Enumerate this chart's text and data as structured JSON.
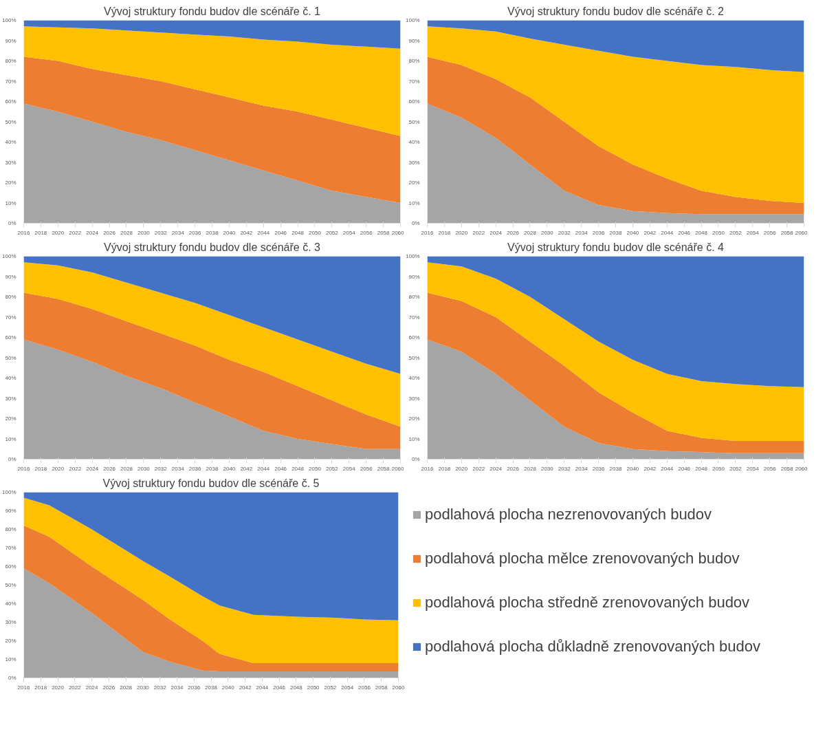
{
  "chart_data": [
    {
      "type": "area",
      "stacked": true,
      "title": "Vývoj struktury fondu budov dle scénáře č. 1",
      "x": [
        2016,
        2020,
        2024,
        2028,
        2032,
        2036,
        2040,
        2044,
        2048,
        2052,
        2056,
        2060
      ],
      "xlim": [
        2016,
        2060
      ],
      "xticks": [
        2016,
        2018,
        2020,
        2022,
        2024,
        2026,
        2028,
        2030,
        2032,
        2034,
        2036,
        2038,
        2040,
        2042,
        2044,
        2046,
        2048,
        2050,
        2052,
        2054,
        2056,
        2058,
        2060
      ],
      "ylim": [
        0,
        100
      ],
      "yticks": [
        {
          "value": 0,
          "label": "0%"
        },
        {
          "value": 10,
          "label": "10%"
        },
        {
          "value": 20,
          "label": "20%"
        },
        {
          "value": 30,
          "label": "30%"
        },
        {
          "value": 40,
          "label": "40%"
        },
        {
          "value": 50,
          "label": "50%"
        },
        {
          "value": 60,
          "label": "60%"
        },
        {
          "value": 70,
          "label": "70%"
        },
        {
          "value": 80,
          "label": "80%"
        },
        {
          "value": 90,
          "label": "90%"
        },
        {
          "value": 100,
          "label": "100%"
        }
      ],
      "series": [
        {
          "color": "#a5a5a5",
          "values": [
            59,
            55,
            50,
            45,
            41,
            36,
            31,
            26,
            21,
            16,
            13,
            10
          ]
        },
        {
          "color": "#ed7d31",
          "values": [
            23,
            25,
            26,
            28,
            29,
            30,
            31,
            32,
            34,
            35,
            34,
            33
          ]
        },
        {
          "color": "#ffc000",
          "values": [
            15,
            16.5,
            20,
            22,
            24,
            27,
            30,
            32.5,
            34.5,
            37,
            40,
            43
          ]
        },
        {
          "color": "#4472c4",
          "values": [
            3,
            3.5,
            4,
            5,
            6,
            7,
            8,
            9.5,
            10.5,
            12,
            13,
            14
          ]
        }
      ]
    },
    {
      "type": "area",
      "stacked": true,
      "title": "Vývoj struktury fondu budov dle scénáře č. 2",
      "x": [
        2016,
        2020,
        2024,
        2028,
        2032,
        2036,
        2040,
        2044,
        2048,
        2052,
        2056,
        2060
      ],
      "xlim": [
        2016,
        2060
      ],
      "xticks": [
        2016,
        2018,
        2020,
        2022,
        2024,
        2026,
        2028,
        2030,
        2032,
        2034,
        2036,
        2038,
        2040,
        2042,
        2044,
        2046,
        2048,
        2050,
        2052,
        2054,
        2056,
        2058,
        2060
      ],
      "ylim": [
        0,
        100
      ],
      "yticks": [
        {
          "value": 0,
          "label": "0%"
        },
        {
          "value": 10,
          "label": "10%"
        },
        {
          "value": 20,
          "label": "20%"
        },
        {
          "value": 30,
          "label": "30%"
        },
        {
          "value": 40,
          "label": "40%"
        },
        {
          "value": 50,
          "label": "50%"
        },
        {
          "value": 60,
          "label": "60%"
        },
        {
          "value": 70,
          "label": "70%"
        },
        {
          "value": 80,
          "label": "80%"
        },
        {
          "value": 90,
          "label": "90%"
        },
        {
          "value": 100,
          "label": "100%"
        }
      ],
      "series": [
        {
          "color": "#a5a5a5",
          "values": [
            59,
            52,
            42,
            29,
            16,
            9,
            6,
            5,
            4.5,
            4.5,
            4.5,
            4.5
          ]
        },
        {
          "color": "#ed7d31",
          "values": [
            23,
            26,
            29,
            33,
            34,
            29,
            23,
            17,
            11.5,
            8.5,
            6.5,
            5.5
          ]
        },
        {
          "color": "#ffc000",
          "values": [
            15,
            18,
            23.5,
            29,
            38,
            47,
            53,
            58,
            62,
            64,
            64.5,
            64.5
          ]
        },
        {
          "color": "#4472c4",
          "values": [
            3,
            4,
            5.5,
            9,
            12,
            15,
            18,
            20,
            22,
            23,
            24.5,
            25.5
          ]
        }
      ]
    },
    {
      "type": "area",
      "stacked": true,
      "title": "Vývoj struktury fondu budov dle scénáře č. 3",
      "x": [
        2016,
        2020,
        2024,
        2028,
        2032,
        2036,
        2040,
        2044,
        2048,
        2052,
        2056,
        2060
      ],
      "xlim": [
        2016,
        2060
      ],
      "xticks": [
        2016,
        2018,
        2020,
        2022,
        2024,
        2026,
        2028,
        2030,
        2032,
        2034,
        2036,
        2038,
        2040,
        2042,
        2044,
        2046,
        2048,
        2050,
        2052,
        2054,
        2056,
        2058,
        2060
      ],
      "ylim": [
        0,
        100
      ],
      "yticks": [
        {
          "value": 0,
          "label": "0%"
        },
        {
          "value": 10,
          "label": "10%"
        },
        {
          "value": 20,
          "label": "20%"
        },
        {
          "value": 30,
          "label": "30%"
        },
        {
          "value": 40,
          "label": "40%"
        },
        {
          "value": 50,
          "label": "50%"
        },
        {
          "value": 60,
          "label": "60%"
        },
        {
          "value": 70,
          "label": "70%"
        },
        {
          "value": 80,
          "label": "80%"
        },
        {
          "value": 90,
          "label": "90%"
        },
        {
          "value": 100,
          "label": "100%"
        }
      ],
      "series": [
        {
          "color": "#a5a5a5",
          "values": [
            59,
            54,
            48,
            41,
            35,
            28,
            21,
            14,
            10,
            7.5,
            5,
            5
          ]
        },
        {
          "color": "#ed7d31",
          "values": [
            23,
            25,
            26,
            27,
            27,
            28,
            28,
            29,
            26,
            21.5,
            17,
            11
          ]
        },
        {
          "color": "#ffc000",
          "values": [
            15,
            16.5,
            18,
            19,
            20,
            21,
            22,
            22,
            23,
            24,
            25,
            26
          ]
        },
        {
          "color": "#4472c4",
          "values": [
            3,
            4.5,
            8,
            13,
            18,
            23,
            29,
            35,
            41,
            47,
            53,
            58
          ]
        }
      ]
    },
    {
      "type": "area",
      "stacked": true,
      "title": "Vývoj struktury fondu budov dle scénáře č. 4",
      "x": [
        2016,
        2020,
        2024,
        2028,
        2032,
        2036,
        2040,
        2044,
        2048,
        2052,
        2056,
        2060
      ],
      "xlim": [
        2016,
        2060
      ],
      "xticks": [
        2016,
        2018,
        2020,
        2022,
        2024,
        2026,
        2028,
        2030,
        2032,
        2034,
        2036,
        2038,
        2040,
        2042,
        2044,
        2046,
        2048,
        2050,
        2052,
        2054,
        2056,
        2058,
        2060
      ],
      "ylim": [
        0,
        100
      ],
      "yticks": [
        {
          "value": 0,
          "label": "0%"
        },
        {
          "value": 10,
          "label": "10%"
        },
        {
          "value": 20,
          "label": "20%"
        },
        {
          "value": 30,
          "label": "30%"
        },
        {
          "value": 40,
          "label": "40%"
        },
        {
          "value": 50,
          "label": "50%"
        },
        {
          "value": 60,
          "label": "60%"
        },
        {
          "value": 70,
          "label": "70%"
        },
        {
          "value": 80,
          "label": "80%"
        },
        {
          "value": 90,
          "label": "90%"
        },
        {
          "value": 100,
          "label": "100%"
        }
      ],
      "series": [
        {
          "color": "#a5a5a5",
          "values": [
            59,
            53,
            42,
            29,
            16,
            8,
            5,
            4,
            3.5,
            3,
            3,
            3
          ]
        },
        {
          "color": "#ed7d31",
          "values": [
            23,
            25,
            28,
            29,
            30,
            25,
            18,
            10,
            7,
            6,
            6,
            6
          ]
        },
        {
          "color": "#ffc000",
          "values": [
            15,
            17,
            19,
            22,
            23,
            25,
            26,
            28,
            28,
            28,
            27,
            26.5
          ]
        },
        {
          "color": "#4472c4",
          "values": [
            3,
            5,
            11,
            20,
            31,
            42,
            51,
            58,
            61.5,
            63,
            64,
            64.5
          ]
        }
      ]
    },
    {
      "type": "area",
      "stacked": true,
      "title": "Vývoj struktury fondu budov dle scénáře č. 5",
      "legend": "right",
      "x": [
        2016,
        2019,
        2024,
        2030,
        2033,
        2037,
        2039,
        2043,
        2048,
        2052,
        2056,
        2060
      ],
      "xlim": [
        2016,
        2060
      ],
      "xticks": [
        2016,
        2018,
        2020,
        2022,
        2024,
        2026,
        2028,
        2030,
        2032,
        2034,
        2036,
        2038,
        2040,
        2042,
        2044,
        2046,
        2048,
        2050,
        2052,
        2054,
        2056,
        2058,
        2060
      ],
      "ylim": [
        0,
        100
      ],
      "yticks": [
        {
          "value": 0,
          "label": "0%"
        },
        {
          "value": 10,
          "label": "10%"
        },
        {
          "value": 20,
          "label": "20%"
        },
        {
          "value": 30,
          "label": "30%"
        },
        {
          "value": 40,
          "label": "40%"
        },
        {
          "value": 50,
          "label": "50%"
        },
        {
          "value": 60,
          "label": "60%"
        },
        {
          "value": 70,
          "label": "70%"
        },
        {
          "value": 80,
          "label": "80%"
        },
        {
          "value": 90,
          "label": "90%"
        },
        {
          "value": 100,
          "label": "100%"
        }
      ],
      "series": [
        {
          "name": "podlahová plocha nezrenovovaných budov",
          "color": "#a5a5a5",
          "values": [
            59,
            51,
            35,
            14,
            9,
            4,
            3.5,
            3.5,
            3.5,
            3.5,
            3.5,
            3.5
          ]
        },
        {
          "name": "podlahová plocha mělce zrenovovaných budov",
          "color": "#ed7d31",
          "values": [
            23,
            25,
            25,
            28,
            23,
            16,
            9.5,
            4.5,
            4.5,
            4.5,
            4.5,
            4.5
          ]
        },
        {
          "name": "podlahová plocha středně zrenovovaných budov",
          "color": "#ffc000",
          "values": [
            15,
            17,
            20,
            21,
            23,
            24,
            26,
            26,
            25,
            24.5,
            23.5,
            23
          ]
        },
        {
          "name": "podlahová plocha důkladně zrenovovaných budov",
          "color": "#4472c4",
          "values": [
            3,
            7,
            20,
            37,
            45,
            56,
            61,
            66,
            67,
            67.5,
            68.5,
            69
          ]
        }
      ]
    }
  ]
}
